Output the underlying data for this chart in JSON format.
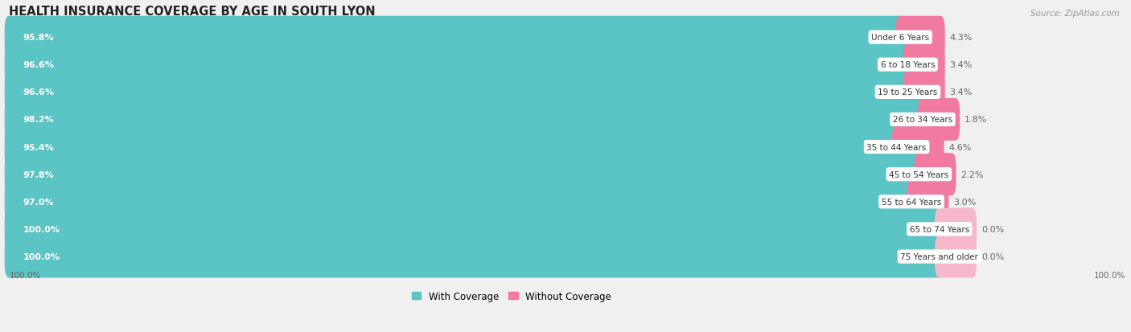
{
  "title": "HEALTH INSURANCE COVERAGE BY AGE IN SOUTH LYON",
  "source": "Source: ZipAtlas.com",
  "categories": [
    "Under 6 Years",
    "6 to 18 Years",
    "19 to 25 Years",
    "26 to 34 Years",
    "35 to 44 Years",
    "45 to 54 Years",
    "55 to 64 Years",
    "65 to 74 Years",
    "75 Years and older"
  ],
  "with_coverage": [
    95.8,
    96.6,
    96.6,
    98.2,
    95.4,
    97.8,
    97.0,
    100.0,
    100.0
  ],
  "without_coverage": [
    4.3,
    3.4,
    3.4,
    1.8,
    4.6,
    2.2,
    3.0,
    0.0,
    0.0
  ],
  "with_coverage_color": "#5bc4c4",
  "without_coverage_color": "#f07aa0",
  "without_coverage_color_zero": "#f5b8cb",
  "background_color": "#f0f0f0",
  "row_even_color": "#e8e8e8",
  "row_odd_color": "#f8f8f8",
  "title_fontsize": 10.5,
  "label_fontsize": 8.0,
  "bar_height": 0.55,
  "total_width": 100
}
